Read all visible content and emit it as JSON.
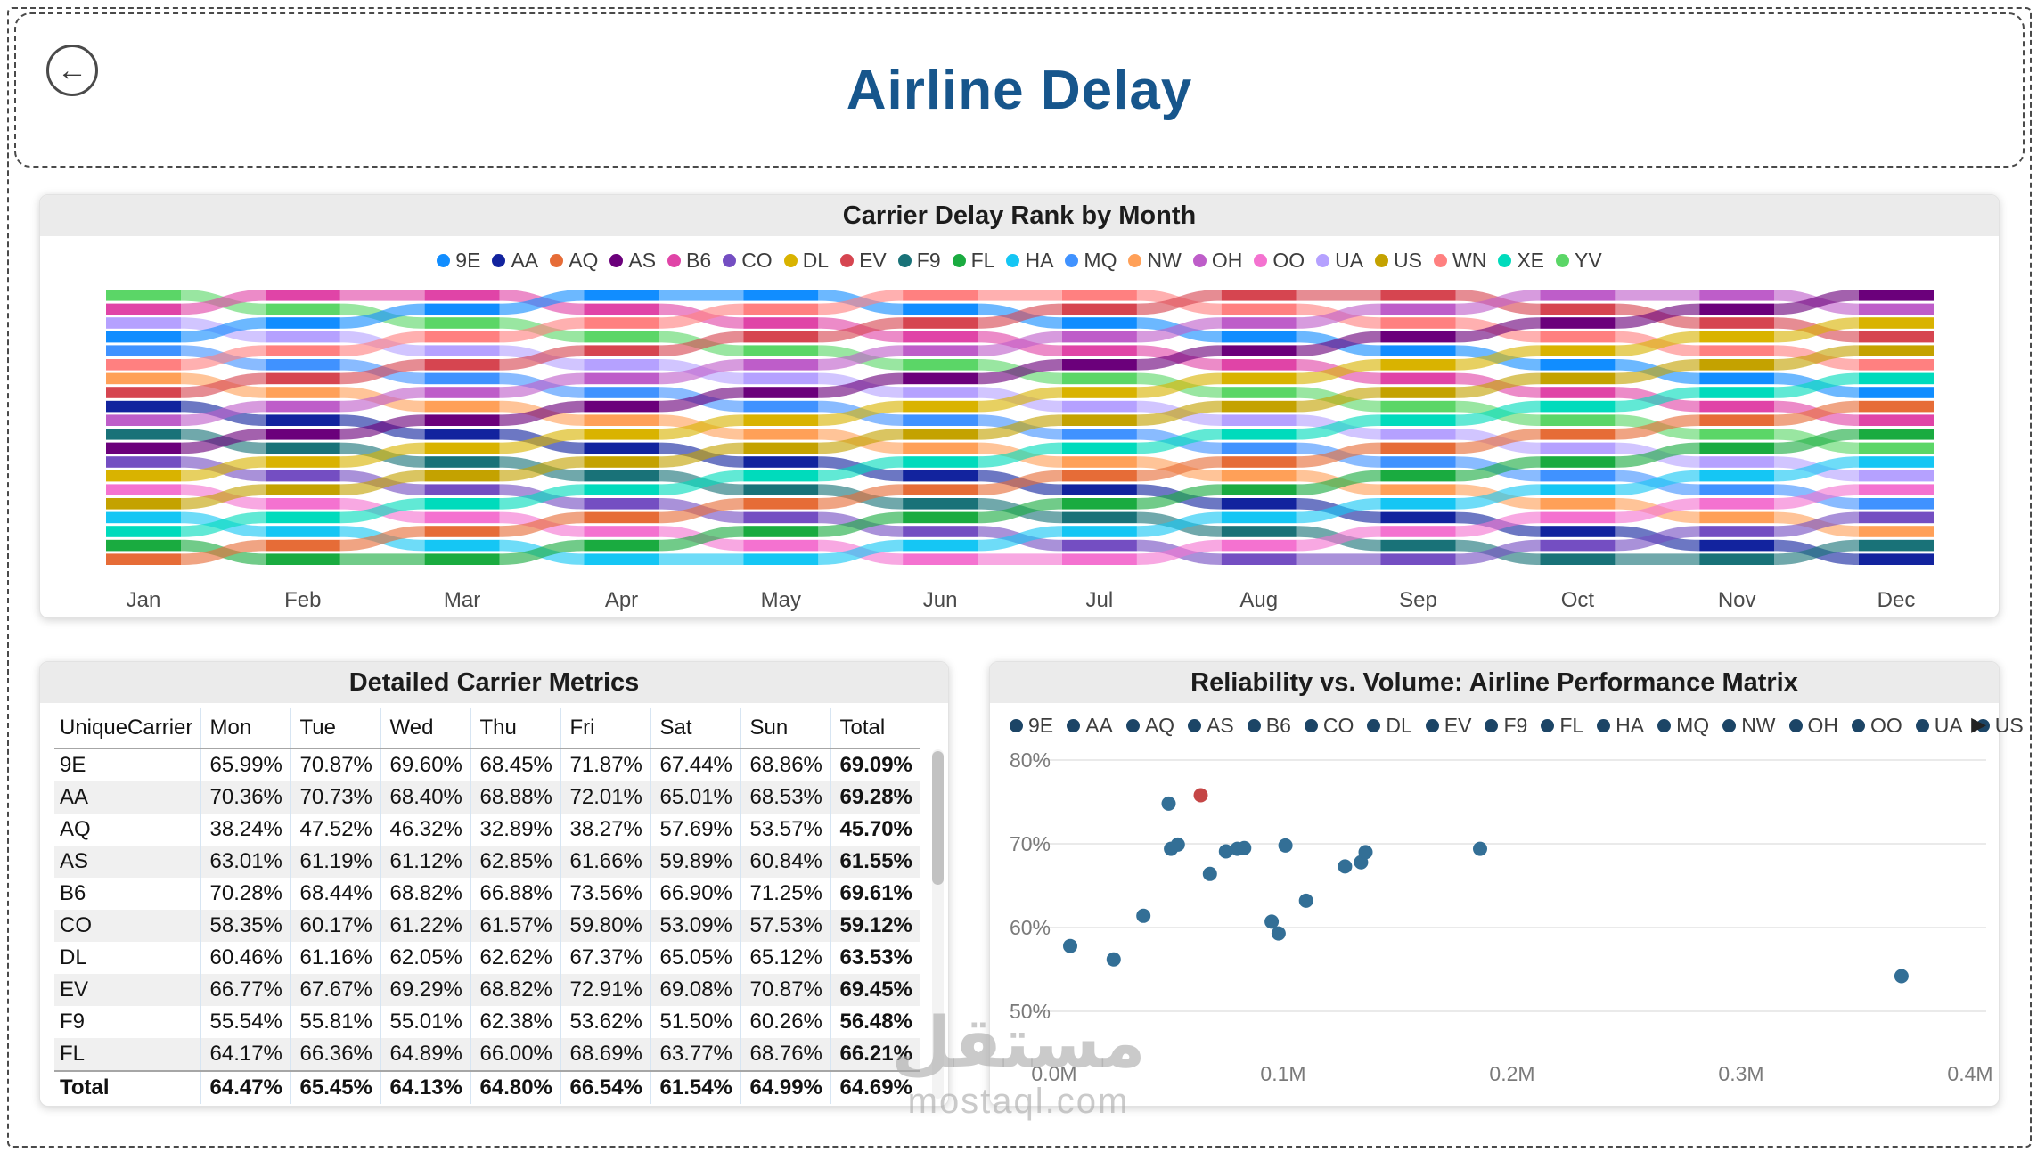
{
  "icons": {
    "back": "←",
    "legend_next": "▶"
  },
  "colors": {
    "title": "#17568C",
    "card_titlebar_bg": "#EBEBEB",
    "scatter_point": "#336F96",
    "scatter_point_highlight": "#C54646",
    "scatter_legend_dot": "#1C4566"
  },
  "page": {
    "title": "Airline Delay"
  },
  "carrier_colors": {
    "9E": "#118DFF",
    "AA": "#12239E",
    "AQ": "#E66C37",
    "AS": "#6B007B",
    "B6": "#E044A7",
    "CO": "#744EC2",
    "DL": "#D9B300",
    "EV": "#D64550",
    "F9": "#197278",
    "FL": "#1AAB40",
    "HA": "#15C6F4",
    "MQ": "#4092FF",
    "NW": "#FFA058",
    "OH": "#BE5DC9",
    "OO": "#F472D0",
    "UA": "#B5A1FF",
    "US": "#C4A200",
    "WN": "#FF8080",
    "XE": "#00DBBC",
    "YV": "#5BD667"
  },
  "ribbon_chart": {
    "title": "Carrier Delay Rank by Month",
    "legend": [
      "9E",
      "AA",
      "AQ",
      "AS",
      "B6",
      "CO",
      "DL",
      "EV",
      "F9",
      "FL",
      "HA",
      "MQ",
      "NW",
      "OH",
      "OO",
      "UA",
      "US",
      "WN",
      "XE",
      "YV"
    ],
    "chart_data": {
      "type": "ribbon",
      "months": [
        "Jan",
        "Feb",
        "Mar",
        "Apr",
        "May",
        "Jun",
        "Jul",
        "Aug",
        "Sep",
        "Oct",
        "Nov",
        "Dec"
      ],
      "rank_order_by_month": [
        [
          "YV",
          "B6",
          "UA",
          "9E",
          "MQ",
          "WN",
          "NW",
          "EV",
          "AA",
          "OH",
          "F9",
          "AS",
          "CO",
          "DL",
          "OO",
          "US",
          "HA",
          "XE",
          "FL",
          "AQ"
        ],
        [
          "B6",
          "YV",
          "9E",
          "UA",
          "WN",
          "MQ",
          "EV",
          "NW",
          "OH",
          "AA",
          "AS",
          "F9",
          "DL",
          "CO",
          "US",
          "OO",
          "XE",
          "HA",
          "AQ",
          "FL"
        ],
        [
          "B6",
          "9E",
          "YV",
          "WN",
          "UA",
          "EV",
          "MQ",
          "OH",
          "NW",
          "AS",
          "AA",
          "DL",
          "F9",
          "US",
          "CO",
          "XE",
          "OO",
          "AQ",
          "HA",
          "FL"
        ],
        [
          "9E",
          "B6",
          "WN",
          "YV",
          "EV",
          "UA",
          "OH",
          "MQ",
          "AS",
          "NW",
          "DL",
          "AA",
          "US",
          "F9",
          "XE",
          "CO",
          "AQ",
          "OO",
          "FL",
          "HA"
        ],
        [
          "9E",
          "WN",
          "B6",
          "EV",
          "YV",
          "OH",
          "UA",
          "AS",
          "MQ",
          "DL",
          "NW",
          "US",
          "AA",
          "XE",
          "F9",
          "AQ",
          "CO",
          "FL",
          "OO",
          "HA"
        ],
        [
          "WN",
          "9E",
          "EV",
          "B6",
          "OH",
          "YV",
          "AS",
          "UA",
          "DL",
          "MQ",
          "US",
          "NW",
          "XE",
          "AA",
          "AQ",
          "F9",
          "FL",
          "CO",
          "HA",
          "OO"
        ],
        [
          "WN",
          "EV",
          "9E",
          "OH",
          "B6",
          "AS",
          "YV",
          "DL",
          "UA",
          "US",
          "MQ",
          "XE",
          "NW",
          "AQ",
          "AA",
          "FL",
          "F9",
          "HA",
          "CO",
          "OO"
        ],
        [
          "EV",
          "WN",
          "OH",
          "9E",
          "AS",
          "B6",
          "DL",
          "YV",
          "US",
          "UA",
          "XE",
          "MQ",
          "AQ",
          "NW",
          "FL",
          "AA",
          "HA",
          "F9",
          "OO",
          "CO"
        ],
        [
          "EV",
          "OH",
          "WN",
          "AS",
          "9E",
          "DL",
          "B6",
          "US",
          "YV",
          "XE",
          "UA",
          "AQ",
          "MQ",
          "FL",
          "NW",
          "HA",
          "AA",
          "OO",
          "F9",
          "CO"
        ],
        [
          "OH",
          "EV",
          "AS",
          "WN",
          "DL",
          "9E",
          "US",
          "B6",
          "XE",
          "YV",
          "AQ",
          "UA",
          "FL",
          "MQ",
          "HA",
          "NW",
          "OO",
          "AA",
          "CO",
          "F9"
        ],
        [
          "OH",
          "AS",
          "EV",
          "DL",
          "WN",
          "US",
          "9E",
          "XE",
          "B6",
          "AQ",
          "YV",
          "FL",
          "UA",
          "HA",
          "MQ",
          "OO",
          "NW",
          "CO",
          "AA",
          "F9"
        ],
        [
          "AS",
          "OH",
          "DL",
          "EV",
          "US",
          "WN",
          "XE",
          "9E",
          "AQ",
          "B6",
          "FL",
          "YV",
          "HA",
          "UA",
          "OO",
          "MQ",
          "CO",
          "NW",
          "F9",
          "AA"
        ]
      ]
    }
  },
  "table": {
    "title": "Detailed Carrier Metrics",
    "columns": [
      "UniqueCarrier",
      "Mon",
      "Tue",
      "Wed",
      "Thu",
      "Fri",
      "Sat",
      "Sun",
      "Total"
    ],
    "rows": [
      [
        "9E",
        "65.99%",
        "70.87%",
        "69.60%",
        "68.45%",
        "71.87%",
        "67.44%",
        "68.86%",
        "69.09%"
      ],
      [
        "AA",
        "70.36%",
        "70.73%",
        "68.40%",
        "68.88%",
        "72.01%",
        "65.01%",
        "68.53%",
        "69.28%"
      ],
      [
        "AQ",
        "38.24%",
        "47.52%",
        "46.32%",
        "32.89%",
        "38.27%",
        "57.69%",
        "53.57%",
        "45.70%"
      ],
      [
        "AS",
        "63.01%",
        "61.19%",
        "61.12%",
        "62.85%",
        "61.66%",
        "59.89%",
        "60.84%",
        "61.55%"
      ],
      [
        "B6",
        "70.28%",
        "68.44%",
        "68.82%",
        "66.88%",
        "73.56%",
        "66.90%",
        "71.25%",
        "69.61%"
      ],
      [
        "CO",
        "58.35%",
        "60.17%",
        "61.22%",
        "61.57%",
        "59.80%",
        "53.09%",
        "57.53%",
        "59.12%"
      ],
      [
        "DL",
        "60.46%",
        "61.16%",
        "62.05%",
        "62.62%",
        "67.37%",
        "65.05%",
        "65.12%",
        "63.53%"
      ],
      [
        "EV",
        "66.77%",
        "67.67%",
        "69.29%",
        "68.82%",
        "72.91%",
        "69.08%",
        "70.87%",
        "69.45%"
      ],
      [
        "F9",
        "55.54%",
        "55.81%",
        "55.01%",
        "62.38%",
        "53.62%",
        "51.50%",
        "60.26%",
        "56.48%"
      ],
      [
        "FL",
        "64.17%",
        "66.36%",
        "64.89%",
        "66.00%",
        "68.69%",
        "63.77%",
        "68.76%",
        "66.21%"
      ]
    ],
    "total_row": [
      "Total",
      "64.47%",
      "65.45%",
      "64.13%",
      "64.80%",
      "66.54%",
      "61.54%",
      "64.99%",
      "64.69%"
    ]
  },
  "scatter": {
    "title": "Reliability vs. Volume: Airline Performance Matrix",
    "legend": [
      "9E",
      "AA",
      "AQ",
      "AS",
      "B6",
      "CO",
      "DL",
      "EV",
      "F9",
      "FL",
      "HA",
      "MQ",
      "NW",
      "OH",
      "OO",
      "UA",
      "US"
    ],
    "chart_data": {
      "type": "scatter",
      "x_ticks": [
        "0.0M",
        "0.1M",
        "0.2M",
        "0.3M",
        "0.4M"
      ],
      "y_ticks": [
        "80%",
        "70%",
        "60%",
        "50%"
      ],
      "x_range_m": [
        0,
        0.4
      ],
      "y_range_pct": [
        45,
        81
      ],
      "grid": true,
      "points": [
        {
          "x": 0.007,
          "y": 57.8
        },
        {
          "x": 0.026,
          "y": 56.2
        },
        {
          "x": 0.039,
          "y": 61.4
        },
        {
          "x": 0.05,
          "y": 74.8
        },
        {
          "x": 0.051,
          "y": 69.4
        },
        {
          "x": 0.054,
          "y": 69.9
        },
        {
          "x": 0.064,
          "y": 75.8,
          "highlight": true
        },
        {
          "x": 0.068,
          "y": 66.4
        },
        {
          "x": 0.075,
          "y": 69.1
        },
        {
          "x": 0.08,
          "y": 69.4
        },
        {
          "x": 0.083,
          "y": 69.5
        },
        {
          "x": 0.095,
          "y": 60.7
        },
        {
          "x": 0.098,
          "y": 59.3
        },
        {
          "x": 0.101,
          "y": 69.8
        },
        {
          "x": 0.11,
          "y": 63.2
        },
        {
          "x": 0.127,
          "y": 67.3
        },
        {
          "x": 0.134,
          "y": 67.8
        },
        {
          "x": 0.136,
          "y": 69.0
        },
        {
          "x": 0.186,
          "y": 69.4
        },
        {
          "x": 0.37,
          "y": 54.2
        }
      ]
    }
  },
  "watermark": {
    "arabic": "مستقل",
    "domain": "mostaql.com"
  }
}
